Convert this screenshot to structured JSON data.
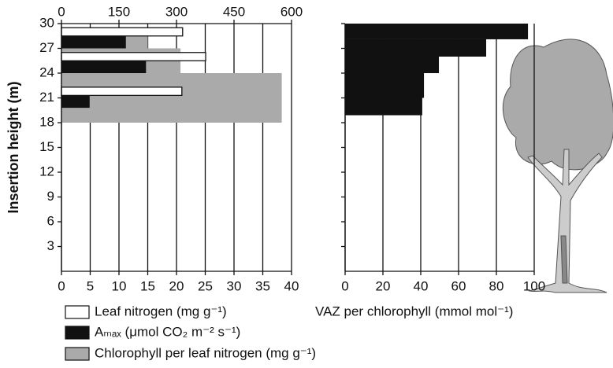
{
  "chart_data": [
    {
      "type": "barh",
      "ylabel": "Insertion height (m)",
      "ylim": [
        0,
        30
      ],
      "yticks": [
        3,
        6,
        9,
        12,
        15,
        18,
        21,
        24,
        27,
        30
      ],
      "xlim": [
        0,
        40
      ],
      "xticks": [
        0,
        5,
        10,
        15,
        20,
        25,
        30,
        35,
        40
      ],
      "x2lim": [
        0,
        600
      ],
      "x2ticks": [
        0,
        150,
        300,
        450,
        600
      ],
      "grid": true,
      "series": [
        {
          "name": "Leaf nitrogen (mg g⁻¹)",
          "color": "#ffffff",
          "axis": "x2",
          "bands": [
            [
              28.5,
              29.5
            ],
            [
              25.5,
              26.5
            ],
            [
              21.3,
              22.3
            ]
          ],
          "values": [
            316,
            376,
            314
          ]
        },
        {
          "name": "Aₘₐₓ (μmol CO₂ m⁻² s⁻¹)",
          "color": "#111111",
          "axis": "x",
          "bands": [
            [
              27,
              28.5
            ],
            [
              24,
              25.5
            ],
            [
              19.8,
              21.3
            ]
          ],
          "values": [
            11.2,
            14.7,
            4.9
          ]
        },
        {
          "name": "Chlorophyll per leaf nitrogen (mg g⁻¹)",
          "color": "#aaaaaa",
          "axis": "x",
          "bands": [
            [
              27,
              28.5
            ],
            [
              24,
              27
            ],
            [
              18,
              24
            ]
          ],
          "values": [
            15,
            20.7,
            38.3
          ]
        }
      ]
    },
    {
      "type": "step",
      "xlabel": "VAZ per chlorophyll (mmol mol⁻¹)",
      "xlim": [
        0,
        100
      ],
      "xticks": [
        0,
        20,
        40,
        60,
        80,
        100
      ],
      "ylim": [
        0,
        30
      ],
      "yticks": [
        3,
        6,
        9,
        12,
        15,
        18,
        21,
        24,
        27,
        30
      ],
      "ytick_labels": false,
      "grid": true,
      "color": "#111111",
      "bands": [
        [
          28.1,
          30
        ],
        [
          26,
          28.1
        ],
        [
          24,
          26
        ],
        [
          21,
          24
        ],
        [
          18.9,
          21
        ]
      ],
      "values": [
        96.7,
        74.6,
        49.6,
        41.7,
        40.8
      ]
    }
  ]
}
